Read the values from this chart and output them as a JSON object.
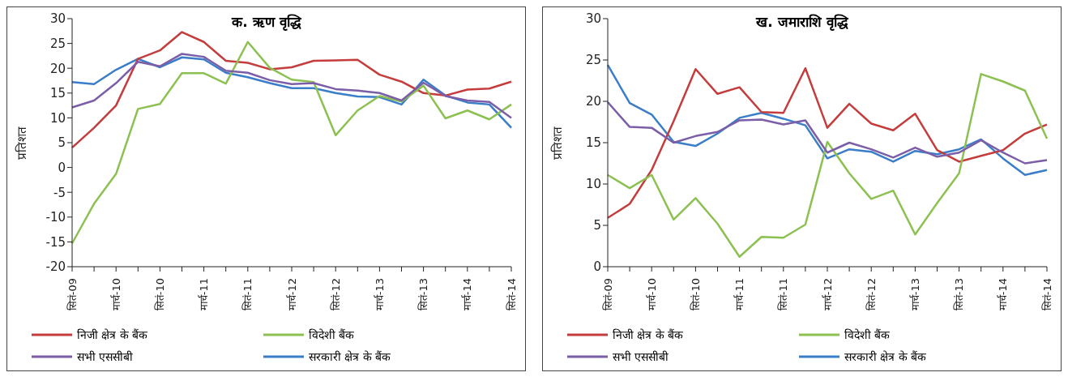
{
  "chart_data": [
    {
      "type": "line",
      "title": "क. ऋण वृद्धि",
      "ylabel": "प्रतिशत",
      "categories": [
        "सितं-09",
        null,
        "मार्च-10",
        null,
        "सितं-10",
        null,
        "मार्च-11",
        null,
        "सितं-11",
        null,
        "मार्च-12",
        null,
        "सितं-12",
        null,
        "मार्च-13",
        null,
        "सितं-13",
        null,
        "मार्च-14",
        null,
        "सितं-14"
      ],
      "series": [
        {
          "name": "सरकारी क्षेत्र के बैंक",
          "color": "#3a7dc9",
          "values": [
            17.2,
            16.8,
            19.7,
            21.9,
            20.2,
            22.2,
            21.8,
            19.1,
            18.2,
            17.0,
            16.0,
            16.0,
            15.0,
            14.3,
            14.2,
            12.7,
            17.7,
            14.5,
            13.1,
            12.7,
            8.0
          ]
        },
        {
          "name": "निजी क्षेत्र के बैंक",
          "color": "#c43c3c",
          "values": [
            4.0,
            8.0,
            12.5,
            21.9,
            23.6,
            27.3,
            25.3,
            21.5,
            21.1,
            19.8,
            20.2,
            21.5,
            21.6,
            21.7,
            18.7,
            17.3,
            15.0,
            14.5,
            15.7,
            15.9,
            17.3
          ]
        },
        {
          "name": "विदेशी बैंक",
          "color": "#8cc152",
          "values": [
            -15.3,
            -7.3,
            -1.3,
            11.8,
            12.8,
            19.0,
            19.0,
            16.9,
            25.3,
            20.1,
            17.7,
            17.2,
            6.5,
            11.5,
            14.4,
            13.3,
            16.5,
            9.9,
            11.5,
            9.7,
            12.7
          ]
        },
        {
          "name": "सभी एससीबी",
          "color": "#7b5ea7",
          "values": [
            12.1,
            13.5,
            17.0,
            21.3,
            20.4,
            22.9,
            22.3,
            19.5,
            19.1,
            17.6,
            16.8,
            17.0,
            15.8,
            15.5,
            15.0,
            13.5,
            17.1,
            14.4,
            13.5,
            13.2,
            10.0
          ]
        }
      ],
      "ylim": [
        -20,
        30
      ],
      "yticks": [
        -20,
        -15,
        -10,
        -5,
        0,
        5,
        10,
        15,
        20,
        25,
        30
      ],
      "grid": false,
      "legend": "bottom",
      "marker": "none",
      "line_style": "solid"
    },
    {
      "type": "line",
      "title": "ख.  जमाराशि वृद्धि",
      "ylabel": "प्रतिशत",
      "categories": [
        "सितं-09",
        null,
        "मार्च-10",
        null,
        "सितं-10",
        null,
        "मार्च-11",
        null,
        "सितं-11",
        null,
        "मार्च-12",
        null,
        "सितं-12",
        null,
        "मार्च-13",
        null,
        "सितं-13",
        null,
        "मार्च-14",
        null,
        "सितं-14"
      ],
      "series": [
        {
          "name": "सरकारी क्षेत्र के बैंक",
          "color": "#3a7dc9",
          "values": [
            24.4,
            19.8,
            18.4,
            15.1,
            14.6,
            16.1,
            18.0,
            18.6,
            17.9,
            17.1,
            13.1,
            14.2,
            13.9,
            12.7,
            14.0,
            13.6,
            14.2,
            15.4,
            13.1,
            11.1,
            11.7
          ]
        },
        {
          "name": "निजी क्षेत्र के बैंक",
          "color": "#c43c3c",
          "values": [
            5.9,
            7.6,
            11.7,
            17.6,
            23.9,
            20.9,
            21.7,
            18.7,
            18.6,
            24.0,
            16.8,
            19.7,
            17.3,
            16.5,
            18.5,
            14.1,
            12.7,
            13.4,
            14.1,
            16.1,
            17.2
          ]
        },
        {
          "name": "विदेशी बैंक",
          "color": "#8cc152",
          "values": [
            11.1,
            9.5,
            11.1,
            5.7,
            8.3,
            5.2,
            1.2,
            3.6,
            3.5,
            5.1,
            15.1,
            11.3,
            8.2,
            9.2,
            3.9,
            7.7,
            11.3,
            23.3,
            22.4,
            21.3,
            15.5
          ]
        },
        {
          "name": "सभी एससीबी",
          "color": "#7b5ea7",
          "values": [
            19.9,
            16.9,
            16.8,
            15.0,
            15.8,
            16.3,
            17.7,
            17.8,
            17.2,
            17.7,
            13.8,
            15.0,
            14.2,
            13.2,
            14.4,
            13.3,
            13.8,
            15.3,
            13.8,
            12.5,
            12.9
          ]
        }
      ],
      "ylim": [
        0,
        30
      ],
      "yticks": [
        0,
        5,
        10,
        15,
        20,
        25,
        30
      ],
      "grid": false,
      "legend": "bottom",
      "marker": "none",
      "line_style": "solid"
    }
  ]
}
